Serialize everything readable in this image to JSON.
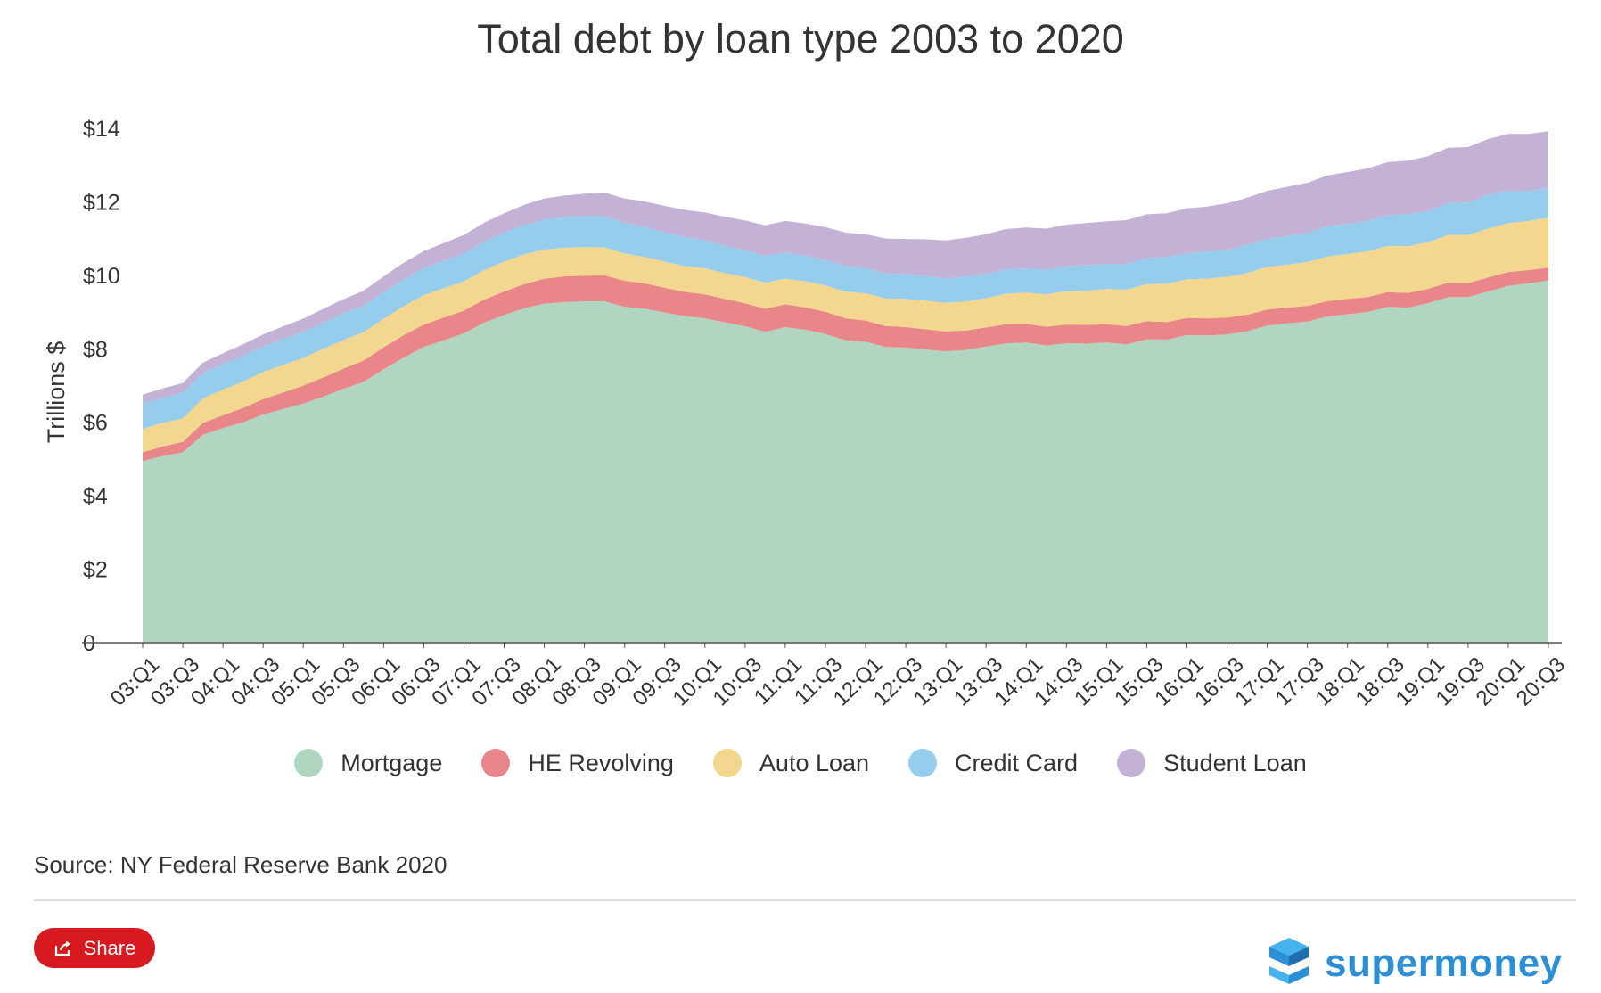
{
  "chart_data": {
    "type": "area",
    "stacked": true,
    "title": "Total debt by loan type 2003 to 2020",
    "ylabel": "Trillions $",
    "xlabel": "",
    "ylim": [
      0,
      14.5
    ],
    "yticks": [
      {
        "value": 0,
        "label": "0"
      },
      {
        "value": 2,
        "label": "$2"
      },
      {
        "value": 4,
        "label": "$4"
      },
      {
        "value": 6,
        "label": "$6"
      },
      {
        "value": 8,
        "label": "$8"
      },
      {
        "value": 10,
        "label": "$10"
      },
      {
        "value": 12,
        "label": "$12"
      },
      {
        "value": 14,
        "label": "$14"
      }
    ],
    "categories": [
      "03:Q1",
      "03:Q2",
      "03:Q3",
      "03:Q4",
      "04:Q1",
      "04:Q2",
      "04:Q3",
      "04:Q4",
      "05:Q1",
      "05:Q2",
      "05:Q3",
      "05:Q4",
      "06:Q1",
      "06:Q2",
      "06:Q3",
      "06:Q4",
      "07:Q1",
      "07:Q2",
      "07:Q3",
      "07:Q4",
      "08:Q1",
      "08:Q2",
      "08:Q3",
      "08:Q4",
      "09:Q1",
      "09:Q2",
      "09:Q3",
      "09:Q4",
      "10:Q1",
      "10:Q2",
      "10:Q3",
      "10:Q4",
      "11:Q1",
      "11:Q2",
      "11:Q3",
      "11:Q4",
      "12:Q1",
      "12:Q2",
      "12:Q3",
      "12:Q4",
      "13:Q1",
      "13:Q2",
      "13:Q3",
      "13:Q4",
      "14:Q1",
      "14:Q2",
      "14:Q3",
      "14:Q4",
      "15:Q1",
      "15:Q2",
      "15:Q3",
      "15:Q4",
      "16:Q1",
      "16:Q2",
      "16:Q3",
      "16:Q4",
      "17:Q1",
      "17:Q2",
      "17:Q3",
      "17:Q4",
      "18:Q1",
      "18:Q2",
      "18:Q3",
      "18:Q4",
      "19:Q1",
      "19:Q2",
      "19:Q3",
      "19:Q4",
      "20:Q1",
      "20:Q2",
      "20:Q3"
    ],
    "tick_labels": [
      "03:Q1",
      "03:Q3",
      "04:Q1",
      "04:Q3",
      "05:Q1",
      "05:Q3",
      "06:Q1",
      "06:Q3",
      "07:Q1",
      "07:Q3",
      "08:Q1",
      "08:Q3",
      "09:Q1",
      "09:Q3",
      "10:Q1",
      "10:Q3",
      "11:Q1",
      "11:Q3",
      "12:Q1",
      "12:Q3",
      "13:Q1",
      "13:Q3",
      "14:Q1",
      "14:Q3",
      "15:Q1",
      "15:Q3",
      "16:Q1",
      "16:Q3",
      "17:Q1",
      "17:Q3",
      "18:Q1",
      "18:Q3",
      "19:Q1",
      "19:Q3",
      "20:Q1",
      "20:Q3"
    ],
    "series": [
      {
        "name": "Mortgage",
        "color": "#b0d6c2",
        "values": [
          4.94,
          5.08,
          5.18,
          5.66,
          5.84,
          6.0,
          6.21,
          6.36,
          6.51,
          6.7,
          6.91,
          7.1,
          7.44,
          7.76,
          8.05,
          8.23,
          8.42,
          8.71,
          8.92,
          9.1,
          9.23,
          9.27,
          9.29,
          9.29,
          9.14,
          9.09,
          8.99,
          8.89,
          8.83,
          8.72,
          8.61,
          8.46,
          8.59,
          8.52,
          8.4,
          8.23,
          8.19,
          8.05,
          8.03,
          7.98,
          7.93,
          7.97,
          8.06,
          8.15,
          8.17,
          8.09,
          8.15,
          8.14,
          8.17,
          8.12,
          8.26,
          8.25,
          8.37,
          8.36,
          8.39,
          8.48,
          8.63,
          8.69,
          8.74,
          8.88,
          8.94,
          9.0,
          9.14,
          9.12,
          9.24,
          9.41,
          9.41,
          9.56,
          9.71,
          9.78,
          9.86
        ]
      },
      {
        "name": "HE Revolving",
        "color": "#e8868a",
        "values": [
          0.24,
          0.26,
          0.29,
          0.32,
          0.35,
          0.39,
          0.42,
          0.45,
          0.49,
          0.52,
          0.55,
          0.58,
          0.6,
          0.61,
          0.61,
          0.62,
          0.62,
          0.63,
          0.64,
          0.66,
          0.68,
          0.7,
          0.7,
          0.71,
          0.71,
          0.69,
          0.67,
          0.66,
          0.65,
          0.64,
          0.63,
          0.63,
          0.62,
          0.61,
          0.61,
          0.6,
          0.58,
          0.57,
          0.56,
          0.55,
          0.54,
          0.53,
          0.52,
          0.52,
          0.51,
          0.51,
          0.51,
          0.51,
          0.5,
          0.5,
          0.49,
          0.48,
          0.47,
          0.47,
          0.46,
          0.45,
          0.44,
          0.43,
          0.43,
          0.42,
          0.42,
          0.41,
          0.4,
          0.4,
          0.39,
          0.39,
          0.38,
          0.38,
          0.38,
          0.36,
          0.35
        ]
      },
      {
        "name": "Auto Loan",
        "color": "#f3d78e",
        "values": [
          0.64,
          0.64,
          0.64,
          0.67,
          0.7,
          0.72,
          0.74,
          0.75,
          0.75,
          0.78,
          0.78,
          0.77,
          0.78,
          0.79,
          0.8,
          0.8,
          0.8,
          0.8,
          0.81,
          0.81,
          0.79,
          0.78,
          0.78,
          0.76,
          0.74,
          0.72,
          0.71,
          0.7,
          0.71,
          0.7,
          0.71,
          0.71,
          0.7,
          0.71,
          0.71,
          0.73,
          0.74,
          0.75,
          0.77,
          0.78,
          0.78,
          0.79,
          0.8,
          0.83,
          0.85,
          0.88,
          0.91,
          0.93,
          0.96,
          0.99,
          1.01,
          1.04,
          1.05,
          1.08,
          1.11,
          1.13,
          1.16,
          1.17,
          1.19,
          1.21,
          1.22,
          1.24,
          1.26,
          1.27,
          1.27,
          1.3,
          1.31,
          1.33,
          1.33,
          1.34,
          1.36
        ]
      },
      {
        "name": "Credit Card",
        "color": "#96cdec",
        "values": [
          0.69,
          0.69,
          0.7,
          0.7,
          0.69,
          0.7,
          0.7,
          0.71,
          0.71,
          0.71,
          0.72,
          0.73,
          0.72,
          0.73,
          0.74,
          0.75,
          0.76,
          0.78,
          0.79,
          0.8,
          0.82,
          0.83,
          0.84,
          0.85,
          0.84,
          0.82,
          0.81,
          0.8,
          0.76,
          0.74,
          0.73,
          0.73,
          0.71,
          0.7,
          0.7,
          0.7,
          0.69,
          0.68,
          0.67,
          0.68,
          0.67,
          0.67,
          0.66,
          0.66,
          0.66,
          0.67,
          0.68,
          0.7,
          0.68,
          0.7,
          0.71,
          0.73,
          0.71,
          0.73,
          0.74,
          0.76,
          0.76,
          0.78,
          0.8,
          0.83,
          0.82,
          0.83,
          0.84,
          0.87,
          0.85,
          0.87,
          0.88,
          0.93,
          0.89,
          0.82,
          0.81
        ]
      },
      {
        "name": "Student Loan",
        "color": "#c3b1d6",
        "values": [
          0.24,
          0.25,
          0.26,
          0.27,
          0.3,
          0.31,
          0.32,
          0.34,
          0.36,
          0.38,
          0.39,
          0.4,
          0.43,
          0.45,
          0.46,
          0.48,
          0.5,
          0.51,
          0.53,
          0.55,
          0.57,
          0.59,
          0.61,
          0.64,
          0.66,
          0.69,
          0.71,
          0.73,
          0.76,
          0.79,
          0.81,
          0.83,
          0.86,
          0.87,
          0.89,
          0.9,
          0.92,
          0.95,
          0.96,
          0.99,
          1.03,
          1.06,
          1.08,
          1.1,
          1.11,
          1.12,
          1.13,
          1.14,
          1.16,
          1.19,
          1.19,
          1.19,
          1.22,
          1.23,
          1.26,
          1.29,
          1.31,
          1.34,
          1.36,
          1.38,
          1.41,
          1.43,
          1.44,
          1.46,
          1.49,
          1.5,
          1.51,
          1.51,
          1.54,
          1.55,
          1.54
        ]
      }
    ]
  },
  "source_text": "Source: NY Federal Reserve Bank 2020",
  "share_label": "Share",
  "brand": {
    "name": "supermoney",
    "color": "#2c8fd6"
  }
}
